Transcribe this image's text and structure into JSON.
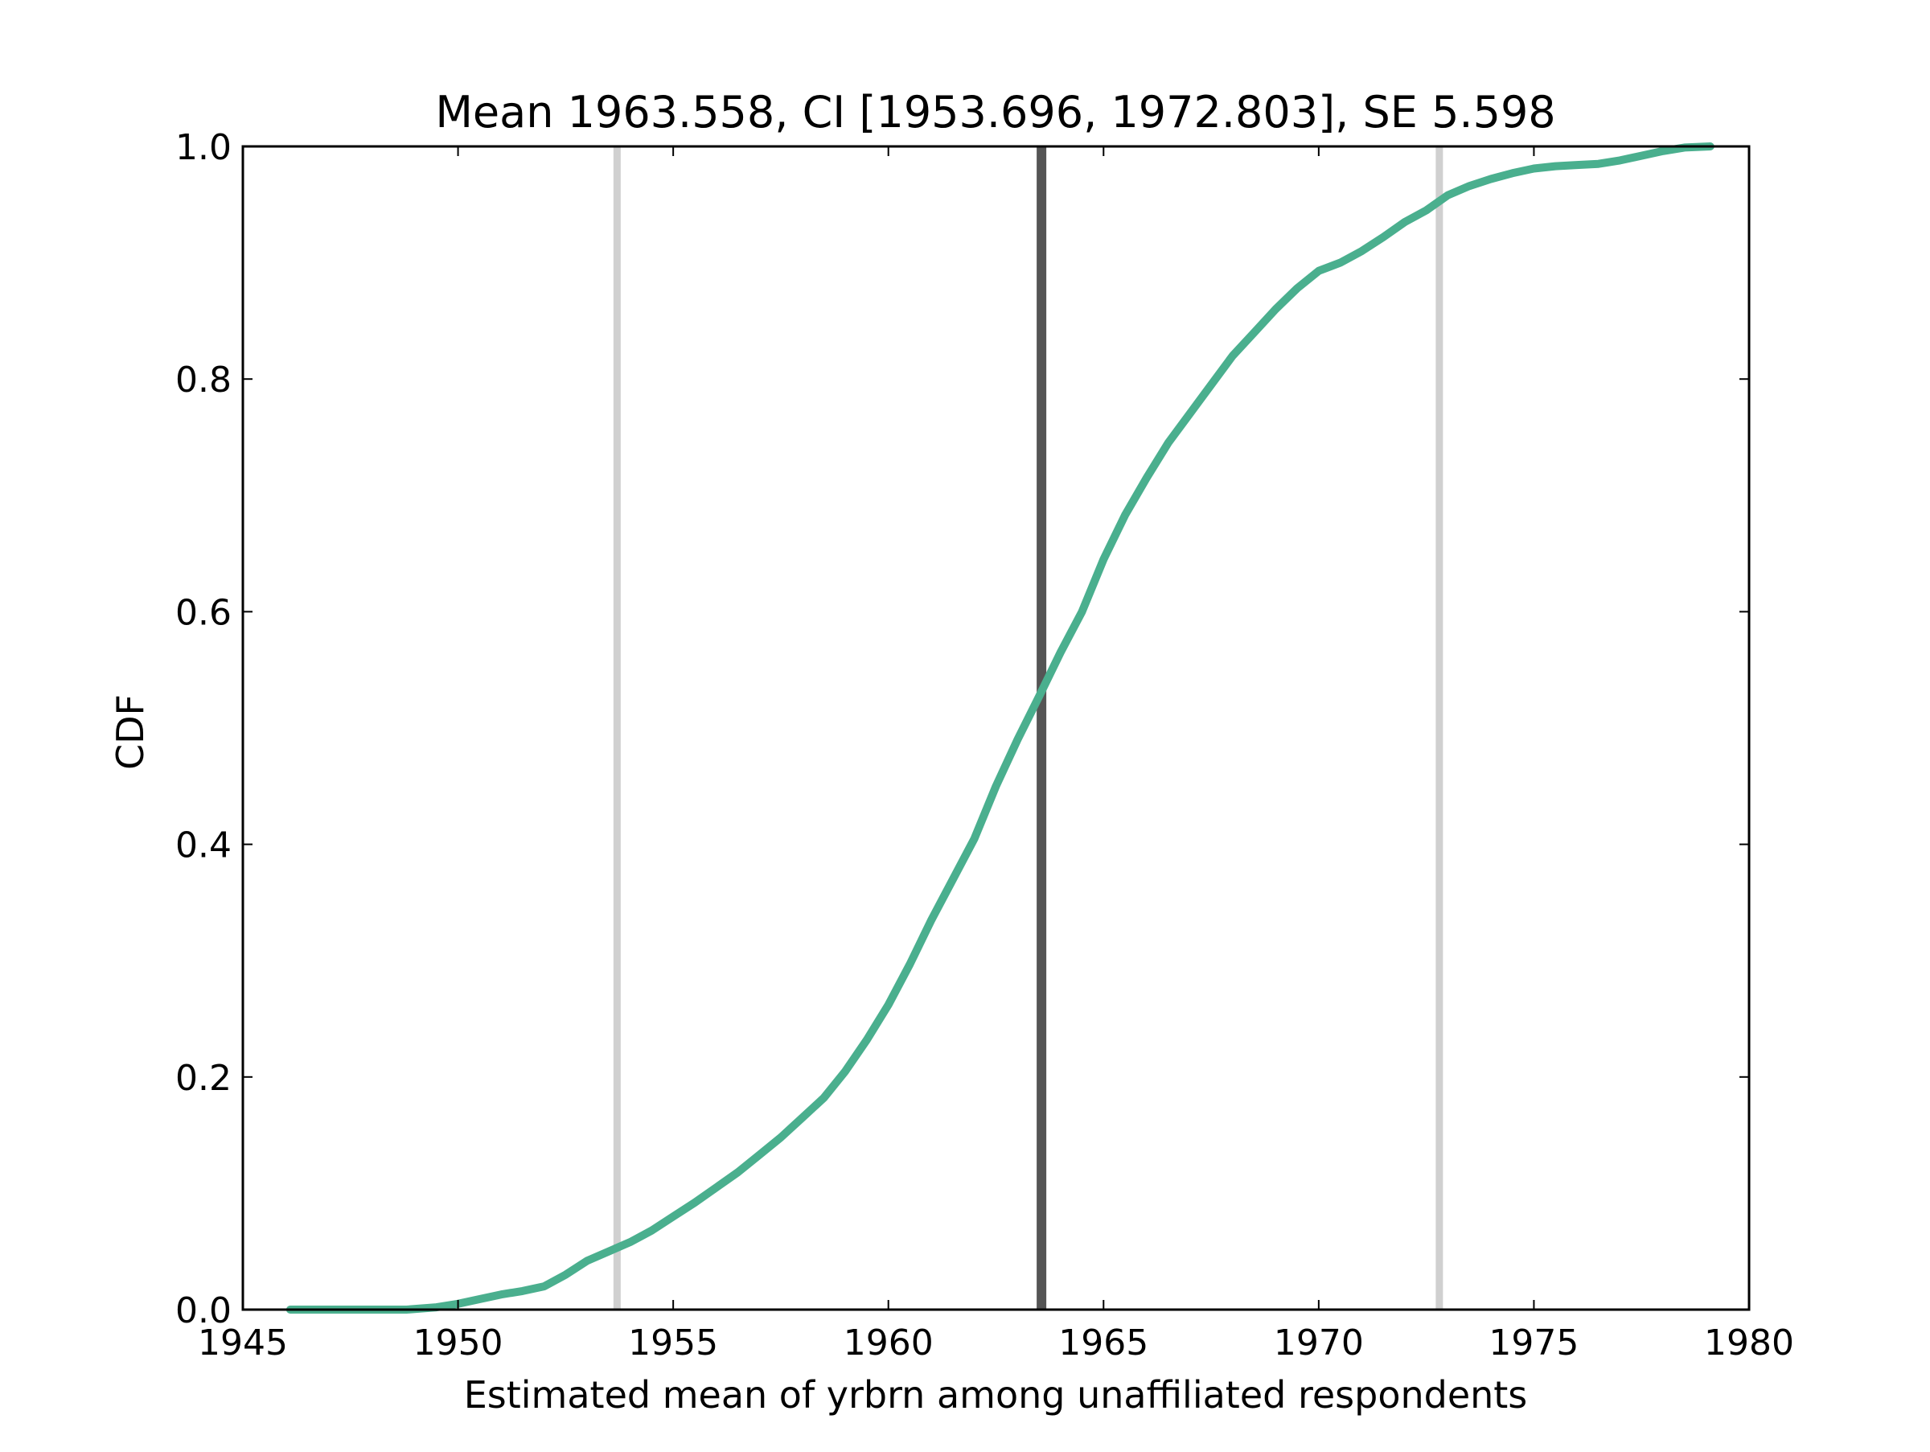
{
  "chart_data": {
    "type": "line",
    "title": "Mean 1963.558, CI [1953.696, 1972.803], SE 5.598",
    "xlabel": "Estimated mean of yrbrn among unaffiliated respondents",
    "ylabel": "CDF",
    "xlim": [
      1945,
      1980
    ],
    "ylim": [
      0.0,
      1.0
    ],
    "xticks": [
      "1945",
      "1950",
      "1955",
      "1960",
      "1965",
      "1970",
      "1975",
      "1980"
    ],
    "yticks": [
      "0.0",
      "0.2",
      "0.4",
      "0.6",
      "0.8",
      "1.0"
    ],
    "grid": false,
    "legend": "none",
    "series": [
      {
        "color": "#4aaf8e",
        "x": [
          1946.1,
          1947.0,
          1948.0,
          1948.8,
          1949.5,
          1950.0,
          1950.5,
          1951.0,
          1951.5,
          1952.0,
          1952.5,
          1953.0,
          1953.5,
          1954.0,
          1954.5,
          1955.0,
          1955.5,
          1956.0,
          1956.5,
          1957.0,
          1957.5,
          1958.0,
          1958.5,
          1959.0,
          1959.5,
          1960.0,
          1960.5,
          1961.0,
          1961.5,
          1962.0,
          1962.5,
          1963.0,
          1963.5,
          1964.0,
          1964.5,
          1965.0,
          1965.5,
          1966.0,
          1966.5,
          1967.0,
          1967.5,
          1968.0,
          1968.5,
          1969.0,
          1969.5,
          1970.0,
          1970.5,
          1971.0,
          1971.5,
          1972.0,
          1972.5,
          1973.0,
          1973.5,
          1974.0,
          1974.5,
          1975.0,
          1975.5,
          1976.0,
          1976.5,
          1977.0,
          1977.5,
          1978.0,
          1978.5,
          1979.1
        ],
        "values": [
          0.0,
          0.0,
          0.0,
          0.0,
          0.002,
          0.005,
          0.009,
          0.013,
          0.016,
          0.02,
          0.03,
          0.042,
          0.05,
          0.058,
          0.068,
          0.08,
          0.092,
          0.105,
          0.118,
          0.133,
          0.148,
          0.165,
          0.182,
          0.205,
          0.232,
          0.262,
          0.297,
          0.335,
          0.37,
          0.405,
          0.45,
          0.49,
          0.527,
          0.565,
          0.6,
          0.645,
          0.683,
          0.715,
          0.745,
          0.77,
          0.795,
          0.82,
          0.84,
          0.86,
          0.878,
          0.893,
          0.9,
          0.91,
          0.922,
          0.935,
          0.945,
          0.958,
          0.966,
          0.972,
          0.977,
          0.981,
          0.983,
          0.984,
          0.985,
          0.988,
          0.992,
          0.996,
          0.999,
          1.0
        ]
      }
    ],
    "vlines": [
      {
        "x": 1953.696,
        "color": "#d0d0d0"
      },
      {
        "x": 1963.558,
        "color": "#555555"
      },
      {
        "x": 1972.803,
        "color": "#d0d0d0"
      }
    ]
  }
}
